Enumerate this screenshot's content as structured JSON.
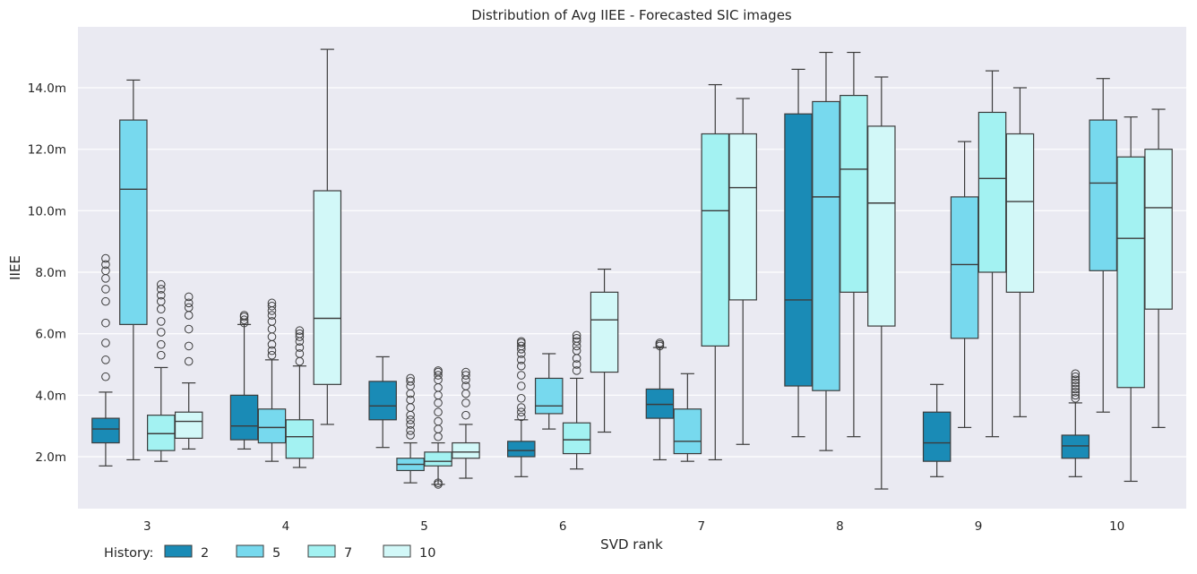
{
  "chart_data": {
    "type": "box",
    "title": "Distribution of Avg IIEE - Forecasted SIC images",
    "xlabel": "SVD rank",
    "ylabel": "IIEE",
    "categories": [
      "3",
      "4",
      "5",
      "6",
      "7",
      "8",
      "9",
      "10"
    ],
    "ylim": [
      0.3,
      15.8
    ],
    "yticks": [
      2.0,
      4.0,
      6.0,
      8.0,
      10.0,
      12.0,
      14.0
    ],
    "ytick_labels": [
      "2.0m",
      "4.0m",
      "6.0m",
      "8.0m",
      "10.0m",
      "12.0m",
      "14.0m"
    ],
    "grid": true,
    "legend": {
      "title": "History:",
      "position": "bottom-left",
      "items": [
        "2",
        "5",
        "7",
        "10"
      ]
    },
    "series": [
      {
        "name": "2",
        "color": "#1a8bb6",
        "boxes": [
          {
            "whislo": 1.7,
            "q1": 2.45,
            "med": 2.9,
            "q3": 3.25,
            "whishi": 4.1,
            "fliers": [
              4.6,
              5.15,
              5.7,
              6.35,
              7.05,
              7.45,
              7.8,
              8.05,
              8.25,
              8.45
            ]
          },
          {
            "whislo": 2.25,
            "q1": 2.55,
            "med": 3.0,
            "q3": 4.0,
            "whishi": 6.3,
            "fliers": [
              6.35,
              6.45,
              6.55,
              6.6
            ]
          },
          {
            "whislo": 2.3,
            "q1": 3.2,
            "med": 3.65,
            "q3": 4.45,
            "whishi": 5.25,
            "fliers": []
          },
          {
            "whislo": 1.35,
            "q1": 2.0,
            "med": 2.2,
            "q3": 2.5,
            "whishi": 3.2,
            "fliers": [
              3.3,
              3.45,
              3.6,
              3.9,
              4.3,
              4.65,
              4.95,
              5.15,
              5.35,
              5.5,
              5.6,
              5.7,
              5.75
            ]
          },
          {
            "whislo": 1.9,
            "q1": 3.25,
            "med": 3.7,
            "q3": 4.2,
            "whishi": 5.55,
            "fliers": [
              5.6,
              5.65,
              5.7
            ]
          },
          {
            "whislo": 2.65,
            "q1": 4.3,
            "med": 7.1,
            "q3": 13.15,
            "whishi": 14.6,
            "fliers": []
          },
          {
            "whislo": 1.35,
            "q1": 1.85,
            "med": 2.45,
            "q3": 3.45,
            "whishi": 4.35,
            "fliers": []
          },
          {
            "whislo": 1.35,
            "q1": 1.95,
            "med": 2.35,
            "q3": 2.7,
            "whishi": 3.75,
            "fliers": [
              3.9,
              4.0,
              4.1,
              4.2,
              4.3,
              4.4,
              4.5,
              4.6,
              4.7
            ]
          }
        ]
      },
      {
        "name": "5",
        "color": "#77d9ee",
        "boxes": [
          {
            "whislo": 1.9,
            "q1": 6.3,
            "med": 10.7,
            "q3": 12.95,
            "whishi": 14.25,
            "fliers": []
          },
          {
            "whislo": 1.85,
            "q1": 2.45,
            "med": 2.95,
            "q3": 3.55,
            "whishi": 5.15,
            "fliers": [
              5.3,
              5.45,
              5.65,
              5.9,
              6.15,
              6.4,
              6.6,
              6.75,
              6.9,
              7.0
            ]
          },
          {
            "whislo": 1.15,
            "q1": 1.55,
            "med": 1.75,
            "q3": 1.95,
            "whishi": 2.45,
            "fliers": [
              2.7,
              2.85,
              3.05,
              3.2,
              3.35,
              3.6,
              3.85,
              4.05,
              4.3,
              4.45,
              4.55
            ]
          },
          {
            "whislo": 2.9,
            "q1": 3.4,
            "med": 3.65,
            "q3": 4.55,
            "whishi": 5.35,
            "fliers": []
          },
          {
            "whislo": 1.85,
            "q1": 2.1,
            "med": 2.5,
            "q3": 3.55,
            "whishi": 4.7,
            "fliers": []
          },
          {
            "whislo": 2.2,
            "q1": 4.15,
            "med": 10.45,
            "q3": 13.55,
            "whishi": 15.15,
            "fliers": []
          },
          {
            "whislo": 2.95,
            "q1": 5.85,
            "med": 8.25,
            "q3": 10.45,
            "whishi": 12.25,
            "fliers": []
          },
          {
            "whislo": 3.45,
            "q1": 8.05,
            "med": 10.9,
            "q3": 12.95,
            "whishi": 14.3,
            "fliers": []
          }
        ]
      },
      {
        "name": "7",
        "color": "#a3f2f2",
        "boxes": [
          {
            "whislo": 1.85,
            "q1": 2.2,
            "med": 2.75,
            "q3": 3.35,
            "whishi": 4.9,
            "fliers": [
              5.3,
              5.65,
              6.05,
              6.4,
              6.8,
              7.05,
              7.25,
              7.45,
              7.6
            ]
          },
          {
            "whislo": 1.65,
            "q1": 1.95,
            "med": 2.65,
            "q3": 3.2,
            "whishi": 4.95,
            "fliers": [
              5.1,
              5.35,
              5.55,
              5.75,
              5.9,
              6.0,
              6.1
            ]
          },
          {
            "whislo": 1.1,
            "q1": 1.7,
            "med": 1.85,
            "q3": 2.15,
            "whishi": 2.45,
            "fliers": [
              1.1,
              1.15,
              2.65,
              2.9,
              3.15,
              3.45,
              3.75,
              4.0,
              4.25,
              4.5,
              4.65,
              4.75,
              4.8
            ]
          },
          {
            "whislo": 1.6,
            "q1": 2.1,
            "med": 2.55,
            "q3": 3.1,
            "whishi": 4.55,
            "fliers": [
              4.8,
              5.0,
              5.2,
              5.45,
              5.6,
              5.75,
              5.85,
              5.95
            ]
          },
          {
            "whislo": 1.9,
            "q1": 5.6,
            "med": 10.0,
            "q3": 12.5,
            "whishi": 14.1,
            "fliers": []
          },
          {
            "whislo": 2.65,
            "q1": 7.35,
            "med": 11.35,
            "q3": 13.75,
            "whishi": 15.15,
            "fliers": []
          },
          {
            "whislo": 2.65,
            "q1": 8.0,
            "med": 11.05,
            "q3": 13.2,
            "whishi": 14.55,
            "fliers": []
          },
          {
            "whislo": 1.2,
            "q1": 4.25,
            "med": 9.1,
            "q3": 11.75,
            "whishi": 13.05,
            "fliers": []
          }
        ]
      },
      {
        "name": "10",
        "color": "#d2f8f8",
        "boxes": [
          {
            "whislo": 2.25,
            "q1": 2.6,
            "med": 3.15,
            "q3": 3.45,
            "whishi": 4.4,
            "fliers": [
              5.1,
              5.6,
              6.15,
              6.6,
              6.85,
              7.0,
              7.2
            ]
          },
          {
            "whislo": 3.05,
            "q1": 4.35,
            "med": 6.5,
            "q3": 10.65,
            "whishi": 15.25,
            "fliers": []
          },
          {
            "whislo": 1.3,
            "q1": 1.95,
            "med": 2.15,
            "q3": 2.45,
            "whishi": 3.05,
            "fliers": [
              3.35,
              3.75,
              4.05,
              4.3,
              4.5,
              4.65,
              4.75
            ]
          },
          {
            "whislo": 2.8,
            "q1": 4.75,
            "med": 6.45,
            "q3": 7.35,
            "whishi": 8.1,
            "fliers": []
          },
          {
            "whislo": 2.4,
            "q1": 7.1,
            "med": 10.75,
            "q3": 12.5,
            "whishi": 13.65,
            "fliers": []
          },
          {
            "whislo": 0.95,
            "q1": 6.25,
            "med": 10.25,
            "q3": 12.75,
            "whishi": 14.35,
            "fliers": []
          },
          {
            "whislo": 3.3,
            "q1": 7.35,
            "med": 10.3,
            "q3": 12.5,
            "whishi": 14.0,
            "fliers": []
          },
          {
            "whislo": 2.95,
            "q1": 6.8,
            "med": 10.1,
            "q3": 12.0,
            "whishi": 13.3,
            "fliers": []
          }
        ]
      }
    ]
  }
}
